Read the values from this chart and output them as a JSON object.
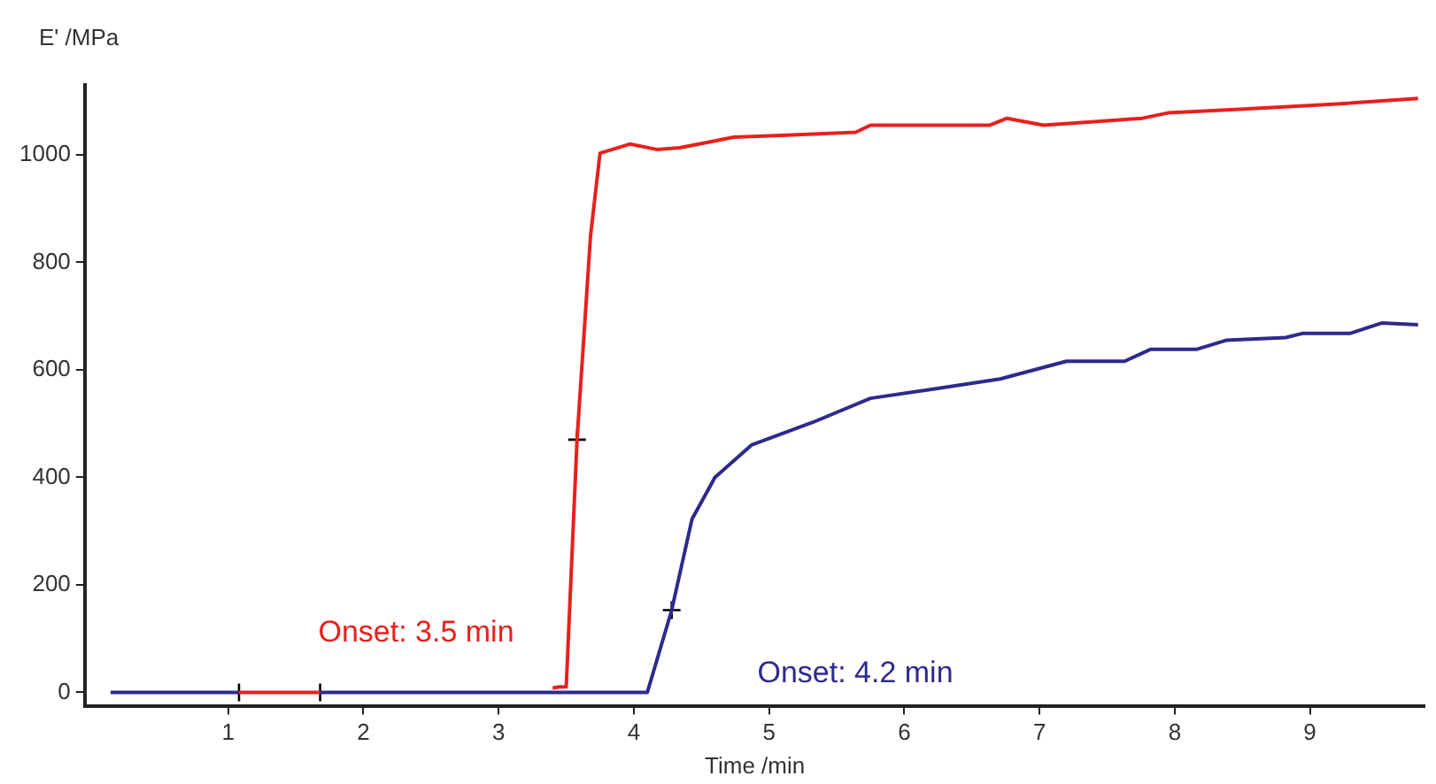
{
  "chart_data": {
    "type": "line",
    "xlabel": "Time /min",
    "ylabel": "E' /MPa",
    "xlim": [
      -0.06,
      9.85
    ],
    "xticks": [
      1,
      2,
      3,
      4,
      5,
      6,
      7,
      8,
      9
    ],
    "ylim": [
      -25,
      1130
    ],
    "yticks": [
      0,
      200,
      400,
      600,
      800,
      1000
    ],
    "grid": false,
    "legend": false,
    "marker": "none",
    "line_style": "solid",
    "series": [
      {
        "color": "#e8201c",
        "x": [
          1.08,
          1.68,
          2.5,
          3.4,
          3.45,
          3.5,
          3.58,
          3.68,
          3.75,
          3.97,
          4.17,
          4.34,
          4.74,
          5.09,
          5.64,
          5.75,
          6.63,
          6.76,
          7.03,
          7.76,
          7.95,
          8.51,
          9.17,
          9.8
        ],
        "values": [
          0,
          0,
          null,
          8,
          10,
          10,
          470,
          850,
          1003,
          1020,
          1010,
          1013,
          1033,
          1036,
          1042,
          1055,
          1055,
          1068,
          1055,
          1068,
          1078,
          1085,
          1094,
          1105
        ]
      },
      {
        "color": "#2e2a8c",
        "x": [
          0.13,
          1.08,
          1.4,
          1.68,
          3.0,
          4.1,
          4.28,
          4.43,
          4.6,
          4.87,
          5.32,
          5.75,
          6.18,
          6.71,
          7.2,
          7.63,
          7.82,
          8.16,
          8.38,
          8.82,
          8.95,
          9.3,
          9.53,
          9.8
        ],
        "values": [
          0,
          0,
          null,
          0,
          0,
          0,
          153,
          322,
          400,
          460,
          502,
          547,
          563,
          583,
          616,
          616,
          638,
          638,
          655,
          660,
          668,
          668,
          687,
          684
        ]
      },
      {
        "type": "scatter",
        "color": "#000000",
        "marker": "cross",
        "x": [
          1.08,
          1.68,
          3.58,
          4.28
        ],
        "values": [
          0,
          0,
          470,
          153
        ]
      }
    ],
    "annotations": [
      "Onset: 3.5 min",
      "Onset: 4.2 min"
    ]
  }
}
